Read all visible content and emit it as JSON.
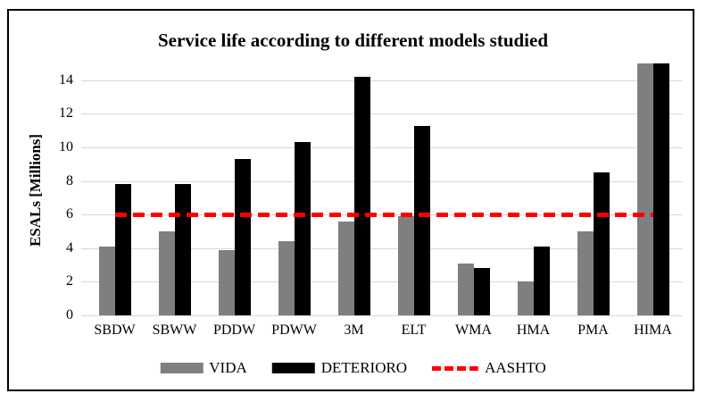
{
  "chart_data": {
    "type": "bar",
    "title": "Service life according to different models studied",
    "ylabel": "ESALs [Millions]",
    "xlabel": "",
    "categories": [
      "SBDW",
      "SBWW",
      "PDDW",
      "PDWW",
      "3M",
      "ELT",
      "WMA",
      "HMA",
      "PMA",
      "HIMA"
    ],
    "series": [
      {
        "name": "VIDA",
        "color": "#7f7f7f",
        "values": [
          4.1,
          5.0,
          3.9,
          4.4,
          5.6,
          5.9,
          3.1,
          2.0,
          5.0,
          15.0
        ]
      },
      {
        "name": "DETERIORO",
        "color": "#000000",
        "values": [
          7.8,
          7.8,
          9.3,
          10.3,
          14.2,
          11.3,
          2.8,
          4.1,
          8.5,
          15.0
        ]
      }
    ],
    "reference_line": {
      "name": "AASHTO",
      "value": 6,
      "color": "#ff0000",
      "style": "dashed"
    },
    "ylim": [
      0,
      15
    ],
    "yticks": [
      0,
      2,
      4,
      6,
      8,
      10,
      12,
      14
    ],
    "grid": true,
    "legend_position": "bottom"
  },
  "colors": {
    "vida": "#7f7f7f",
    "deterioro": "#000000",
    "aashto": "#ff0000",
    "gridline": "#d9d9d9",
    "frame_border": "#000000",
    "background": "#ffffff"
  },
  "legend": {
    "items": [
      {
        "label": "VIDA",
        "swatch": "gray-rect"
      },
      {
        "label": "DETERIORO",
        "swatch": "black-rect"
      },
      {
        "label": "AASHTO",
        "swatch": "red-dashed-line"
      }
    ]
  }
}
